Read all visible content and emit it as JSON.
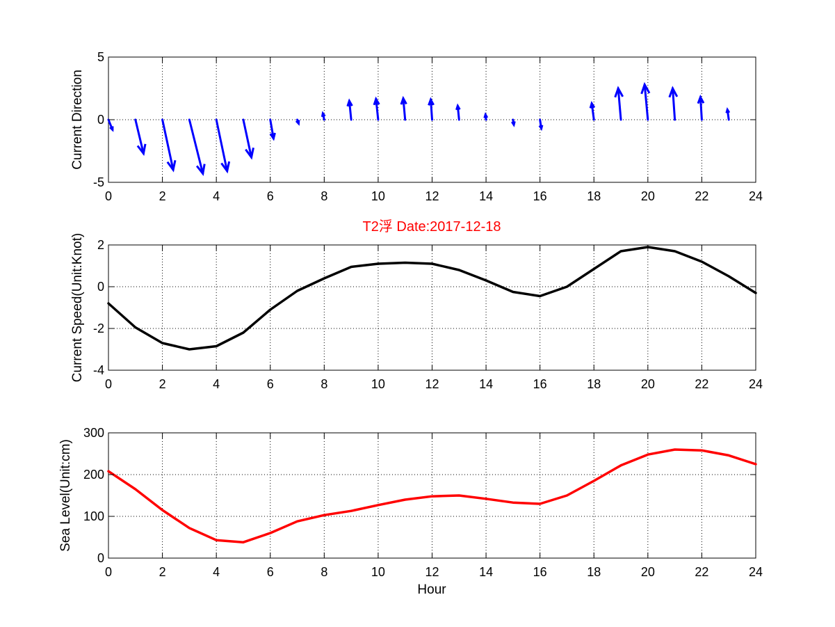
{
  "colors": {
    "background": "#ffffff",
    "axis": "#000000",
    "direction_arrows": "#0000ff",
    "speed_line": "#000000",
    "sea_level_line": "#ff0000",
    "title": "#ff0000"
  },
  "chart_data": [
    {
      "type": "quiver",
      "title": "",
      "xlabel": "",
      "ylabel": "Current Direction",
      "xlim": [
        0,
        24
      ],
      "ylim": [
        -5,
        5
      ],
      "xticks": [
        0,
        2,
        4,
        6,
        8,
        10,
        12,
        14,
        16,
        18,
        20,
        22,
        24
      ],
      "yticks": [
        5,
        0,
        -5
      ],
      "grid": true,
      "series": [
        {
          "x": [
            0,
            1,
            2,
            3,
            4,
            5,
            6,
            7,
            8,
            9,
            10,
            11,
            12,
            13,
            14,
            15,
            16,
            17,
            18,
            19,
            20,
            21,
            22,
            23,
            24
          ],
          "u": [
            0.15,
            0.3,
            0.4,
            0.5,
            0.4,
            0.3,
            0.12,
            0.05,
            -0.05,
            -0.07,
            -0.08,
            -0.07,
            -0.05,
            -0.05,
            -0.02,
            0.03,
            0.05,
            0.0,
            -0.08,
            -0.1,
            -0.12,
            -0.08,
            -0.05,
            -0.05,
            0.0
          ],
          "v": [
            -0.8,
            -2.7,
            -4.0,
            -4.3,
            -4.1,
            -3.0,
            -1.5,
            -0.3,
            0.5,
            1.5,
            1.65,
            1.7,
            1.6,
            1.1,
            0.4,
            -0.4,
            -0.7,
            -0.1,
            1.3,
            2.5,
            2.8,
            2.5,
            1.8,
            0.8,
            -0.1
          ]
        }
      ]
    },
    {
      "type": "line",
      "title": "T2浮   Date:2017-12-18",
      "xlabel": "",
      "ylabel": "Current Speed(Unit:Knot)",
      "xlim": [
        0,
        24
      ],
      "ylim": [
        -4,
        2
      ],
      "xticks": [
        0,
        2,
        4,
        6,
        8,
        10,
        12,
        14,
        16,
        18,
        20,
        22,
        24
      ],
      "yticks": [
        2,
        0,
        -2,
        -4
      ],
      "grid": true,
      "series": [
        {
          "x": [
            0,
            1,
            2,
            3,
            4,
            5,
            6,
            7,
            8,
            9,
            10,
            11,
            12,
            13,
            14,
            15,
            16,
            17,
            18,
            19,
            20,
            21,
            22,
            23,
            24
          ],
          "values": [
            -0.8,
            -1.95,
            -2.7,
            -3.0,
            -2.85,
            -2.2,
            -1.1,
            -0.2,
            0.4,
            0.95,
            1.1,
            1.15,
            1.1,
            0.8,
            0.3,
            -0.25,
            -0.45,
            0.0,
            0.85,
            1.7,
            1.9,
            1.7,
            1.2,
            0.5,
            -0.3
          ]
        }
      ]
    },
    {
      "type": "line",
      "title": "",
      "xlabel": "Hour",
      "ylabel": "Sea Level(Unit:cm)",
      "xlim": [
        0,
        24
      ],
      "ylim": [
        0,
        300
      ],
      "xticks": [
        0,
        2,
        4,
        6,
        8,
        10,
        12,
        14,
        16,
        18,
        20,
        22,
        24
      ],
      "yticks": [
        300,
        200,
        100,
        0
      ],
      "grid": true,
      "series": [
        {
          "x": [
            0,
            1,
            2,
            3,
            4,
            5,
            6,
            7,
            8,
            9,
            10,
            11,
            12,
            13,
            14,
            15,
            16,
            17,
            18,
            19,
            20,
            21,
            22,
            23,
            24
          ],
          "values": [
            208,
            165,
            115,
            72,
            43,
            38,
            60,
            88,
            103,
            113,
            127,
            140,
            148,
            150,
            142,
            133,
            130,
            150,
            185,
            222,
            248,
            260,
            258,
            246,
            225
          ]
        }
      ]
    }
  ]
}
